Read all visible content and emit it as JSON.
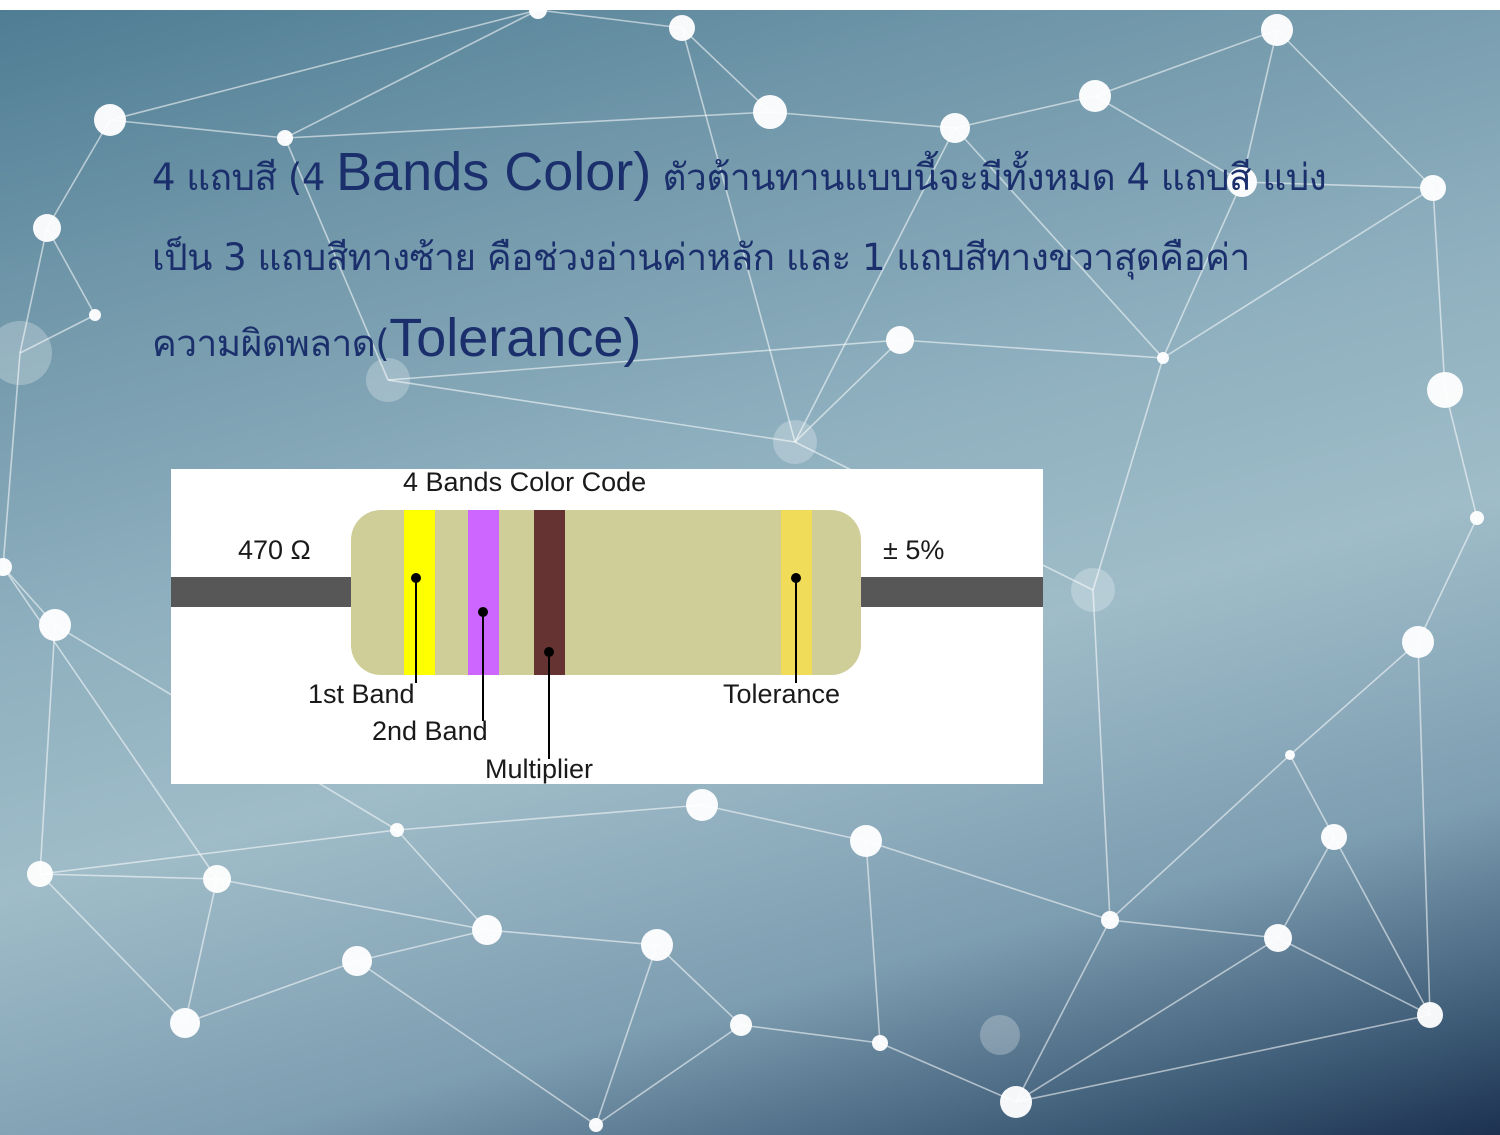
{
  "slide": {
    "text": {
      "p1": "4 แถบสี (4 ",
      "p2": "Bands Color)",
      "p3": " ตัวต้านทานแบบนี้จะมีทั้งหมด 4 แถบสี แบ่งเป็น 3 แถบสีทางซ้าย คือช่วงอ่านค่าหลัก และ 1 แถบสีทางขวาสุดคือค่าความผิดพลาด(",
      "p4": "Tolerance)"
    },
    "diagram": {
      "title": "4 Bands Color Code",
      "resistance": "470 Ω",
      "tolerance_value": "± 5%",
      "labels": {
        "band1": "1st Band",
        "band2": "2nd Band",
        "multiplier": "Multiplier",
        "tolerance": "Tolerance"
      },
      "colors": {
        "body": "#cfcd98",
        "lead": "#575757",
        "band1": "#ffff00",
        "band2": "#cc66ff",
        "multiplier": "#663333",
        "tolerance": "#f1dc5a"
      }
    },
    "background": {
      "gradient": [
        "#4f7d94",
        "#9fbcc8",
        "#1c3150"
      ],
      "node_color": "#ffffff"
    }
  }
}
